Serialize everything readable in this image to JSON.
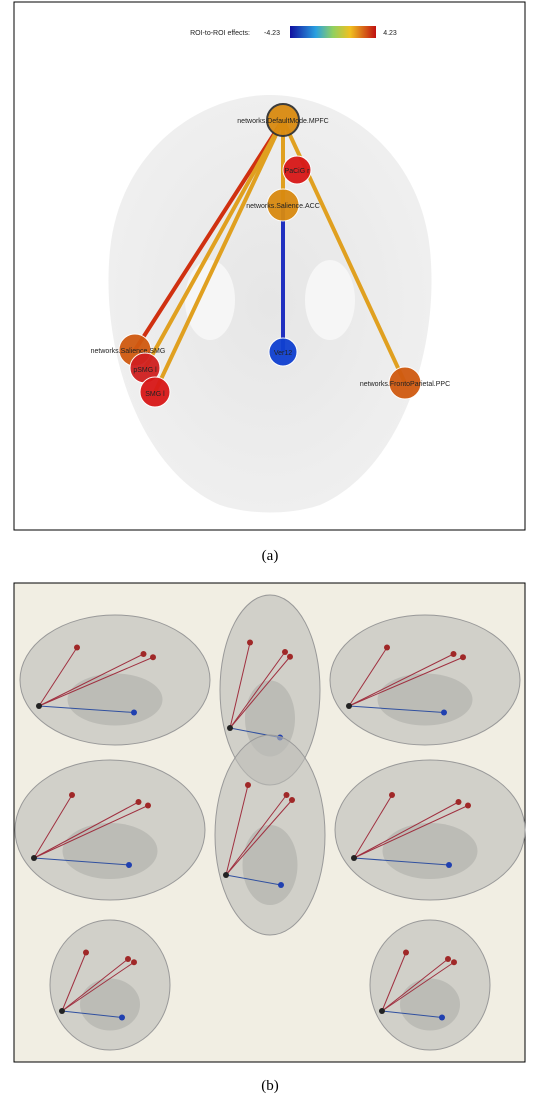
{
  "panel_a": {
    "colorbar": {
      "label": "ROI-to-ROI effects:",
      "min": -4.23,
      "max": 4.23
    },
    "nodes": [
      {
        "label": "networks.DefaultMode.MPFC"
      },
      {
        "label": "PaCiG r"
      },
      {
        "label": "networks.Salience.ACC"
      },
      {
        "label": "Ver12"
      },
      {
        "label": "networks.FrontoParietal.PPC"
      },
      {
        "label": "networks.Salience.SMG"
      },
      {
        "label": "pSMG l"
      },
      {
        "label": "SMG l"
      }
    ],
    "caption": "(a)"
  },
  "panel_b": {
    "caption": "(b)"
  }
}
